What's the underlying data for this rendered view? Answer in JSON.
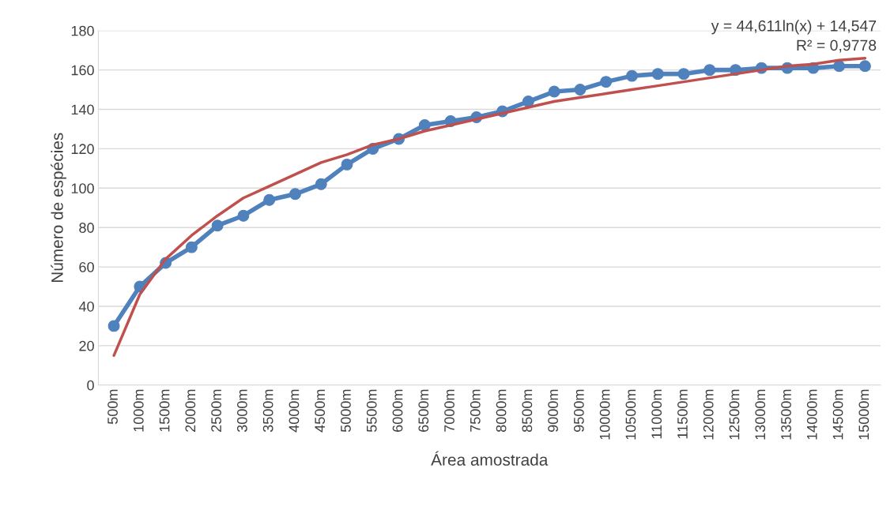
{
  "chart_data": {
    "type": "line",
    "xlabel": "Área amostrada",
    "ylabel": "Número de espécies",
    "categories": [
      "500m",
      "1000m",
      "1500m",
      "2000m",
      "2500m",
      "3000m",
      "3500m",
      "4000m",
      "4500m",
      "5000m",
      "5500m",
      "6000m",
      "6500m",
      "7000m",
      "7500m",
      "8000m",
      "8500m",
      "9000m",
      "9500m",
      "10000m",
      "10500m",
      "11000m",
      "11500m",
      "12000m",
      "12500m",
      "13000m",
      "13500m",
      "14000m",
      "14500m",
      "15000m"
    ],
    "series": [
      {
        "color": "#4f81bd",
        "marker": "circle",
        "values": [
          30,
          50,
          62,
          70,
          81,
          86,
          94,
          97,
          102,
          112,
          120,
          125,
          132,
          134,
          136,
          139,
          144,
          149,
          150,
          154,
          157,
          158,
          158,
          160,
          160,
          161,
          161,
          161,
          162,
          162
        ]
      },
      {
        "color": "#c0504d",
        "marker": "none",
        "values": [
          15,
          46,
          64,
          76,
          86,
          95,
          101,
          107,
          113,
          117,
          122,
          125,
          129,
          132,
          135,
          138,
          141,
          144,
          146,
          148,
          150,
          152,
          154,
          156,
          158,
          160,
          162,
          163,
          165,
          166
        ]
      }
    ],
    "ylim": [
      0,
      180
    ],
    "yticks": [
      0,
      20,
      40,
      60,
      80,
      100,
      120,
      140,
      160,
      180
    ],
    "grid": "y",
    "legend": false,
    "annotations": [
      "y = 44,611ln(x) + 14,547",
      "R² = 0,9778"
    ]
  }
}
